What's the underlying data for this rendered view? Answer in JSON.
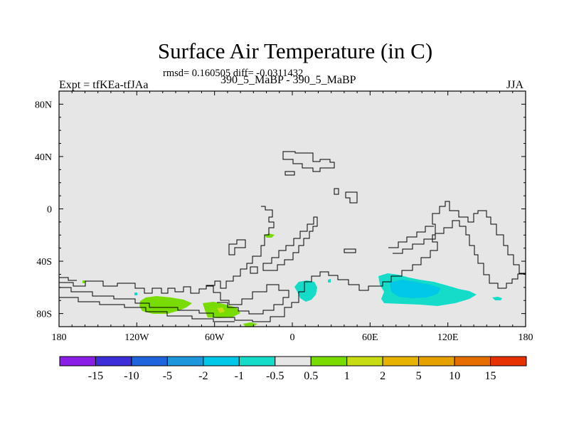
{
  "title": "Surface Air Temperature (in C)",
  "stats": "rmsd= 0.160505 diff= -0.0311432",
  "experiment": "Expt = tfKEa-tfJAa",
  "subtitle": "390_5_MaBP - 390_5_MaBP",
  "season": "JJA",
  "map": {
    "background_color": "#e6e6e6",
    "lat_range": [
      -90,
      90
    ],
    "lon_range": [
      -180,
      180
    ],
    "lat_ticks": [
      {
        "lat": 80,
        "label": "80N"
      },
      {
        "lat": 40,
        "label": "40N"
      },
      {
        "lat": 0,
        "label": "0"
      },
      {
        "lat": -40,
        "label": "40S"
      },
      {
        "lat": -80,
        "label": "80S"
      }
    ],
    "lon_ticks": [
      {
        "lon": -180,
        "label": "180"
      },
      {
        "lon": -120,
        "label": "120W"
      },
      {
        "lon": -60,
        "label": "60W"
      },
      {
        "lon": 0,
        "label": "0"
      },
      {
        "lon": 60,
        "label": "60E"
      },
      {
        "lon": 120,
        "label": "120E"
      },
      {
        "lon": 180,
        "label": "180"
      }
    ]
  },
  "colorbar": {
    "colors": [
      "#8a1ee6",
      "#3c2ed8",
      "#1e64dc",
      "#1e96dc",
      "#00c8e6",
      "#14dcc8",
      "#e6e6e6",
      "#78dc00",
      "#c8dc14",
      "#e6b400",
      "#e6a000",
      "#e66e00",
      "#e63200"
    ],
    "labels": [
      "-15",
      "-10",
      "-5",
      "-2",
      "-1",
      "-0.5",
      "0.5",
      "1",
      "2",
      "5",
      "10",
      "15"
    ]
  }
}
